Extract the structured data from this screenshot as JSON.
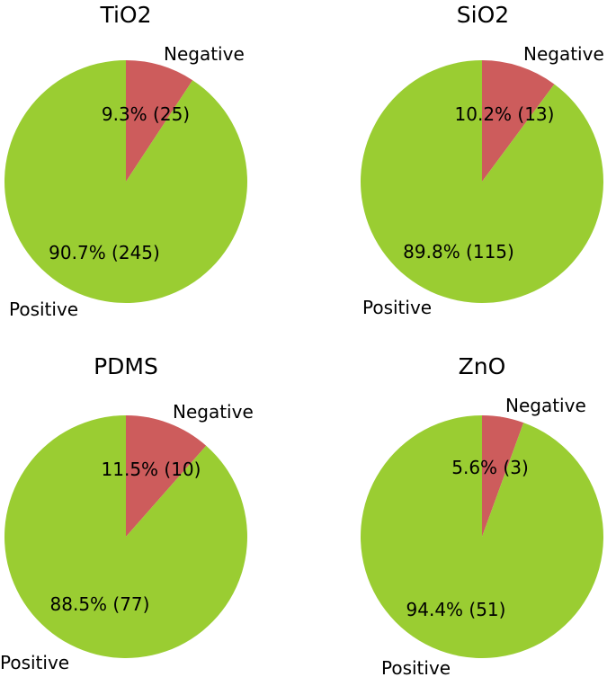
{
  "colors": {
    "Positive": "#9acd32",
    "Negative": "#cd5c5c"
  },
  "chart_data": [
    {
      "type": "pie",
      "title": "TiO2",
      "labels": [
        "Negative",
        "Positive"
      ],
      "values": [
        25,
        245
      ],
      "percent_labels": [
        "9.3% (25)",
        "90.7% (245)"
      ]
    },
    {
      "type": "pie",
      "title": "SiO2",
      "labels": [
        "Negative",
        "Positive"
      ],
      "values": [
        13,
        115
      ],
      "percent_labels": [
        "10.2% (13)",
        "89.8% (115)"
      ]
    },
    {
      "type": "pie",
      "title": "PDMS",
      "labels": [
        "Negative",
        "Positive"
      ],
      "values": [
        10,
        77
      ],
      "percent_labels": [
        "11.5% (10)",
        "88.5% (77)"
      ]
    },
    {
      "type": "pie",
      "title": "ZnO",
      "labels": [
        "Negative",
        "Positive"
      ],
      "values": [
        3,
        51
      ],
      "percent_labels": [
        "5.6% (3)",
        "94.4% (51)"
      ]
    }
  ]
}
